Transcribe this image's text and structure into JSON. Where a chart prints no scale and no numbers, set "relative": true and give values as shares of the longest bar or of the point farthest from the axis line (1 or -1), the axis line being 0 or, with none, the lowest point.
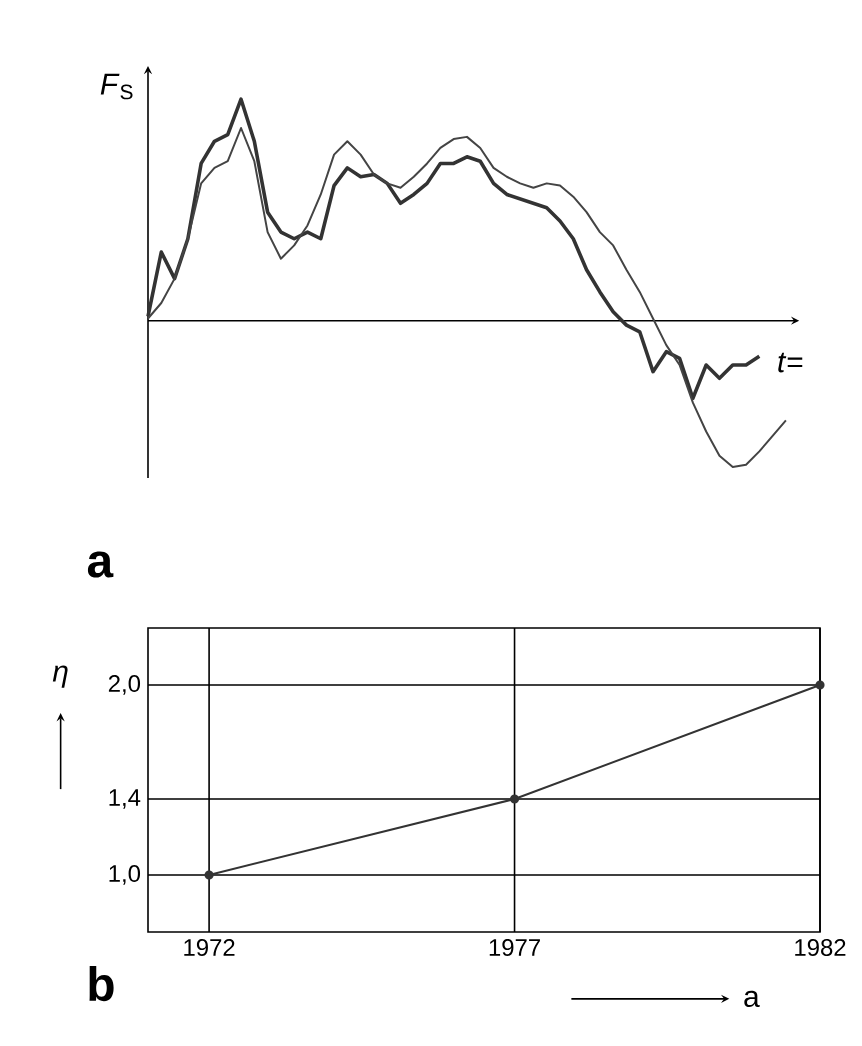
{
  "chart_data": [
    {
      "type": "line",
      "relative": true,
      "ylabel": "*F*$_{S}$",
      "xlabel": "*t*=",
      "annotations": [
        "a"
      ],
      "marker": "none",
      "categories": [
        null,
        null,
        null,
        null,
        null,
        null,
        null,
        null,
        null,
        null,
        null,
        null,
        null,
        null,
        null,
        null,
        null,
        null,
        null,
        null,
        null,
        null,
        null,
        null,
        null,
        null,
        null,
        null,
        null,
        null,
        null,
        null,
        null,
        null,
        null,
        null,
        null,
        null,
        null,
        null,
        null,
        null,
        null,
        null,
        null,
        null,
        null,
        null,
        null
      ],
      "series": [
        {
          "color": "#333333",
          "values": [
            0.02,
            0.31,
            0.19,
            0.37,
            0.71,
            0.81,
            0.84,
            1.0,
            0.81,
            0.49,
            0.4,
            0.37,
            0.4,
            0.37,
            0.61,
            0.69,
            0.65,
            0.66,
            0.62,
            0.53,
            0.57,
            0.62,
            0.71,
            0.71,
            0.74,
            0.72,
            0.62,
            0.57,
            0.55,
            0.53,
            0.51,
            0.45,
            0.37,
            0.23,
            0.13,
            0.04,
            -0.02,
            -0.05,
            -0.23,
            -0.14,
            -0.17,
            -0.35,
            -0.2,
            -0.26,
            -0.2,
            -0.2,
            -0.16,
            null,
            null
          ]
        },
        {
          "color": "#444444",
          "values": [
            0.01,
            0.08,
            0.19,
            0.37,
            0.62,
            0.69,
            0.72,
            0.87,
            0.72,
            0.4,
            0.28,
            0.34,
            0.43,
            0.57,
            0.75,
            0.81,
            0.75,
            0.66,
            0.62,
            0.6,
            0.65,
            0.71,
            0.78,
            0.82,
            0.83,
            0.78,
            0.69,
            0.65,
            0.62,
            0.6,
            0.62,
            0.61,
            0.56,
            0.49,
            0.4,
            0.34,
            0.23,
            0.13,
            0.01,
            -0.11,
            -0.2,
            -0.37,
            -0.5,
            -0.61,
            -0.66,
            -0.65,
            -0.59,
            -0.52,
            -0.45
          ]
        }
      ]
    },
    {
      "type": "line",
      "ylabel": "*η*",
      "xlabel": "a",
      "annotations": [
        "b"
      ],
      "marker": "circle",
      "grid": true,
      "x": [
        1972,
        1977,
        1982
      ],
      "values": [
        1.0,
        1.4,
        2.0
      ],
      "color": "#333333",
      "xlim": [
        1971,
        1982
      ],
      "ylim": [
        0.7,
        2.3
      ],
      "xticks": [
        1972,
        1977,
        1982
      ],
      "yticks": [
        {
          "value": 1.0,
          "label": "1,0"
        },
        {
          "value": 1.4,
          "label": "1,4"
        },
        {
          "value": 2.0,
          "label": "2,0"
        }
      ]
    }
  ]
}
